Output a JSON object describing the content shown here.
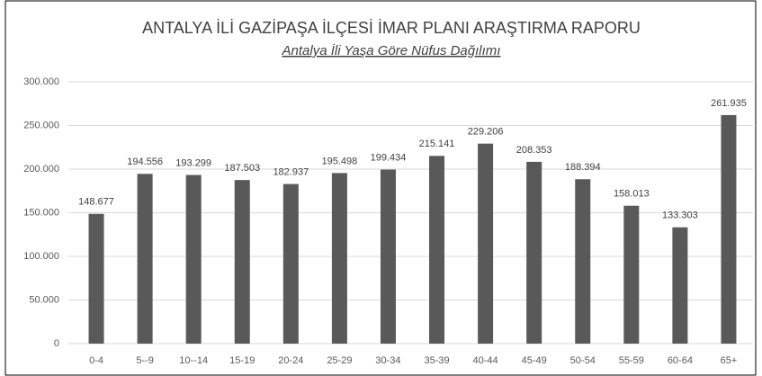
{
  "chart_data": {
    "type": "bar",
    "title": "ANTALYA İLİ GAZİPAŞA İLÇESİ İMAR PLANI ARAŞTIRMA RAPORU",
    "subtitle": "Antalya İli Yaşa Göre Nüfus Dağılımı",
    "categories": [
      "0-4",
      "5--9",
      "10--14",
      "15-19",
      "20-24",
      "25-29",
      "30-34",
      "35-39",
      "40-44",
      "45-49",
      "50-54",
      "55-59",
      "60-64",
      "65+"
    ],
    "values": [
      148677,
      194556,
      193299,
      187503,
      182937,
      195498,
      199434,
      215141,
      229206,
      208353,
      188394,
      158013,
      133303,
      261935
    ],
    "value_labels": [
      "148.677",
      "194.556",
      "193.299",
      "187.503",
      "182.937",
      "195.498",
      "199.434",
      "215.141",
      "229.206",
      "208.353",
      "188.394",
      "158.013",
      "133.303",
      "261.935"
    ],
    "color": "#595959",
    "ylim": [
      0,
      300000
    ],
    "yticks": [
      0,
      {
        "value": 50000,
        "label": "50.000"
      },
      {
        "value": 100000,
        "label": "100.000"
      },
      {
        "value": 150000,
        "label": "150.000"
      },
      {
        "value": 200000,
        "label": "200.000"
      },
      {
        "value": 250000,
        "label": "250.000"
      },
      {
        "value": 300000,
        "label": "300.000"
      }
    ],
    "grid": true
  }
}
